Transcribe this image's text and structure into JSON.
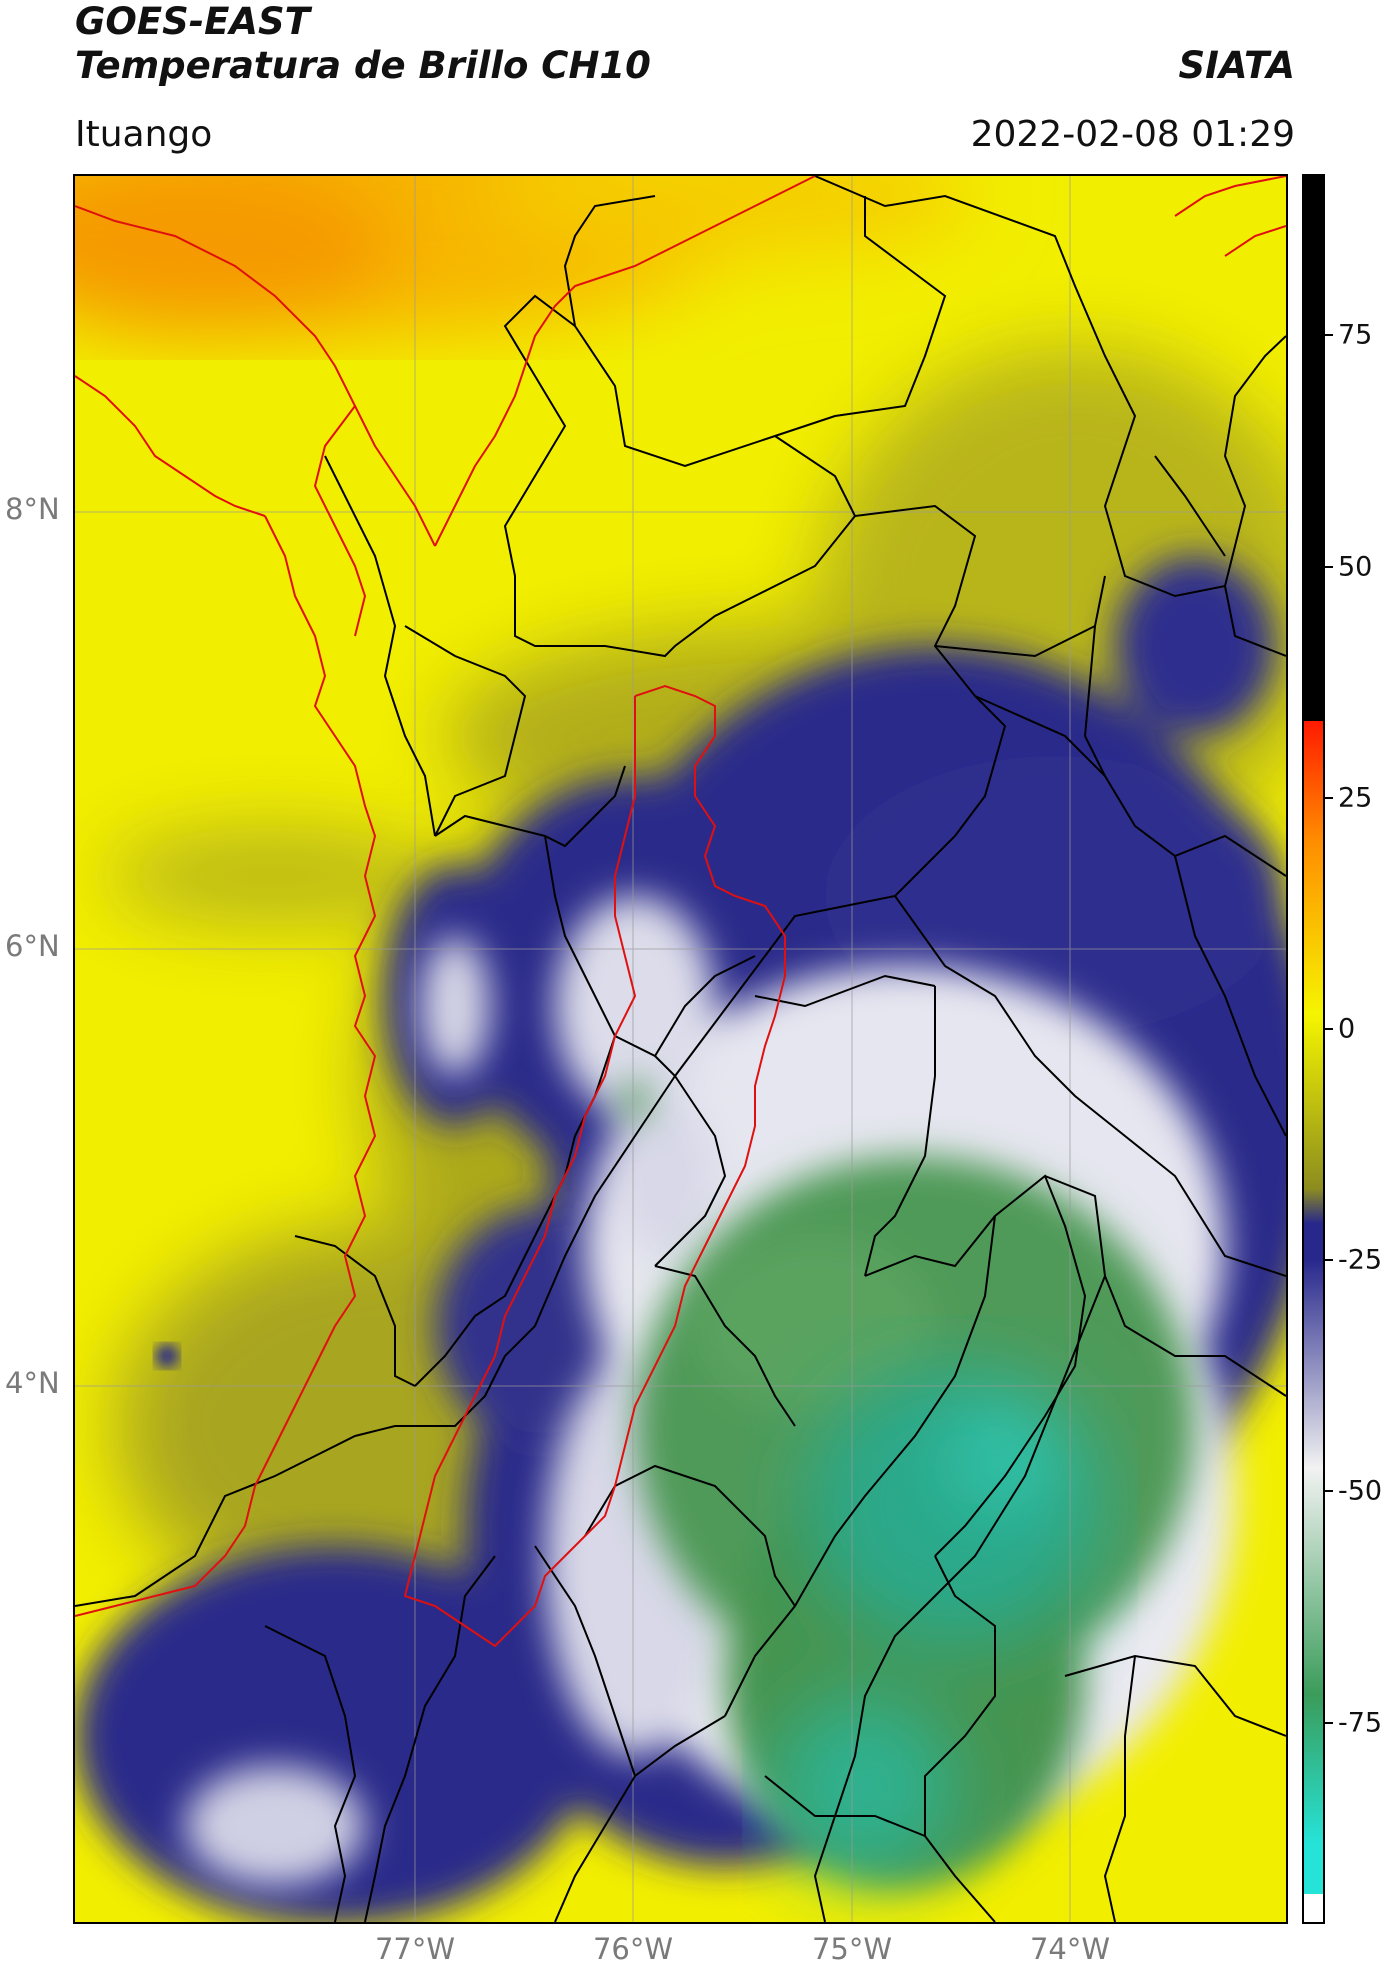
{
  "header": {
    "satellite": "GOES-EAST",
    "product": "Temperatura de Brillo CH10",
    "organization": "SIATA",
    "location": "Ituango",
    "datetime": "2022-02-08 01:29"
  },
  "map": {
    "lat_labels": [
      "8°N",
      "6°N",
      "4°N"
    ],
    "lon_labels": [
      "77°W",
      "76°W",
      "75°W",
      "74°W"
    ],
    "colors": {
      "coastline": "#e01010",
      "boundaries": "#000000",
      "grid": "#9a9a9a"
    }
  },
  "colorbar": {
    "ticks": [
      "75",
      "50",
      "25",
      "0",
      "-25",
      "-50",
      "-75"
    ],
    "colors": [
      "#ffffff",
      "#26e3d7",
      "#3a9c5a",
      "#f2f2f2",
      "#27278c",
      "#f5f500",
      "#ff8c00",
      "#ff1a00",
      "#000000"
    ]
  }
}
